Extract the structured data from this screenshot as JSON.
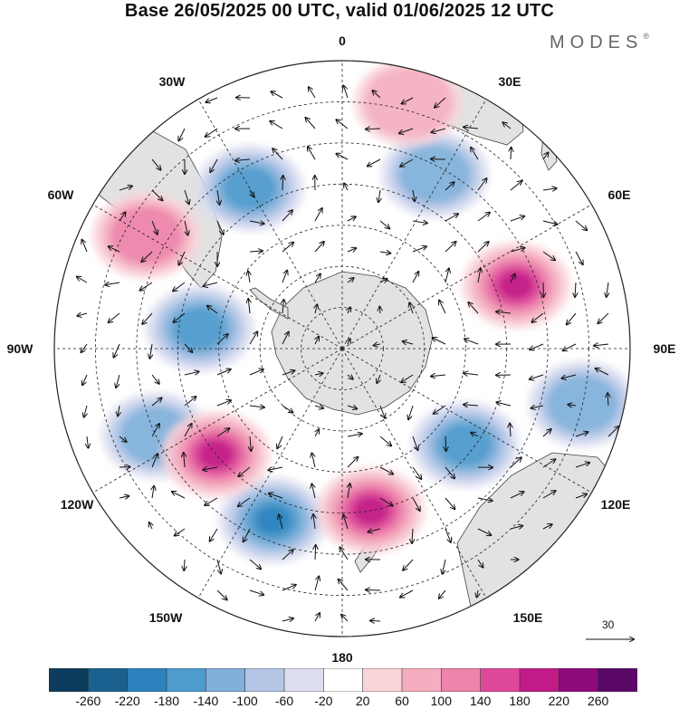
{
  "title": "Base 26/05/2025 00 UTC, valid 01/06/2025 12 UTC",
  "brand": {
    "name": "MODES",
    "mark": "®"
  },
  "map": {
    "projection": "south-polar-stereographic",
    "longitude_labels": [
      "0",
      "30E",
      "60E",
      "90E",
      "120E",
      "150E",
      "180",
      "150W",
      "120W",
      "90W",
      "60W",
      "30W"
    ],
    "wind_vectors": true,
    "reference_vector": {
      "label": "30"
    }
  },
  "anomaly_centers": [
    {
      "sign": "negative",
      "strength": 0.8,
      "lon": -30,
      "lat": -45
    },
    {
      "sign": "negative",
      "strength": 0.7,
      "lon": -82,
      "lat": -55
    },
    {
      "sign": "negative",
      "strength": 0.5,
      "lon": -115,
      "lat": -40
    },
    {
      "sign": "negative",
      "strength": 0.9,
      "lon": -158,
      "lat": -45
    },
    {
      "sign": "negative",
      "strength": 0.8,
      "lon": 128,
      "lat": -52
    },
    {
      "sign": "negative",
      "strength": 0.6,
      "lon": 28,
      "lat": -42
    },
    {
      "sign": "negative",
      "strength": 0.5,
      "lon": 103,
      "lat": -30
    },
    {
      "sign": "positive",
      "strength": 0.95,
      "lon": 70,
      "lat": -45
    },
    {
      "sign": "positive",
      "strength": 0.9,
      "lon": -130,
      "lat": -50
    },
    {
      "sign": "positive",
      "strength": 0.95,
      "lon": 170,
      "lat": -50
    },
    {
      "sign": "positive",
      "strength": 0.45,
      "lon": 15,
      "lat": -28
    },
    {
      "sign": "positive",
      "strength": 0.5,
      "lon": -60,
      "lat": -35
    }
  ],
  "colorbar": {
    "ticks": [
      "-260",
      "-220",
      "-180",
      "-140",
      "-100",
      "-60",
      "-20",
      "20",
      "60",
      "100",
      "140",
      "180",
      "220",
      "260"
    ],
    "colors": [
      "#0d3c5e",
      "#19628f",
      "#2c82bd",
      "#4e9bcd",
      "#80b1da",
      "#b4c7e7",
      "#dcdef0",
      "#ffffff",
      "#f9d4d9",
      "#f4aec0",
      "#ed84ab",
      "#de489b",
      "#c01b86",
      "#8f0a79",
      "#5a0868"
    ]
  }
}
